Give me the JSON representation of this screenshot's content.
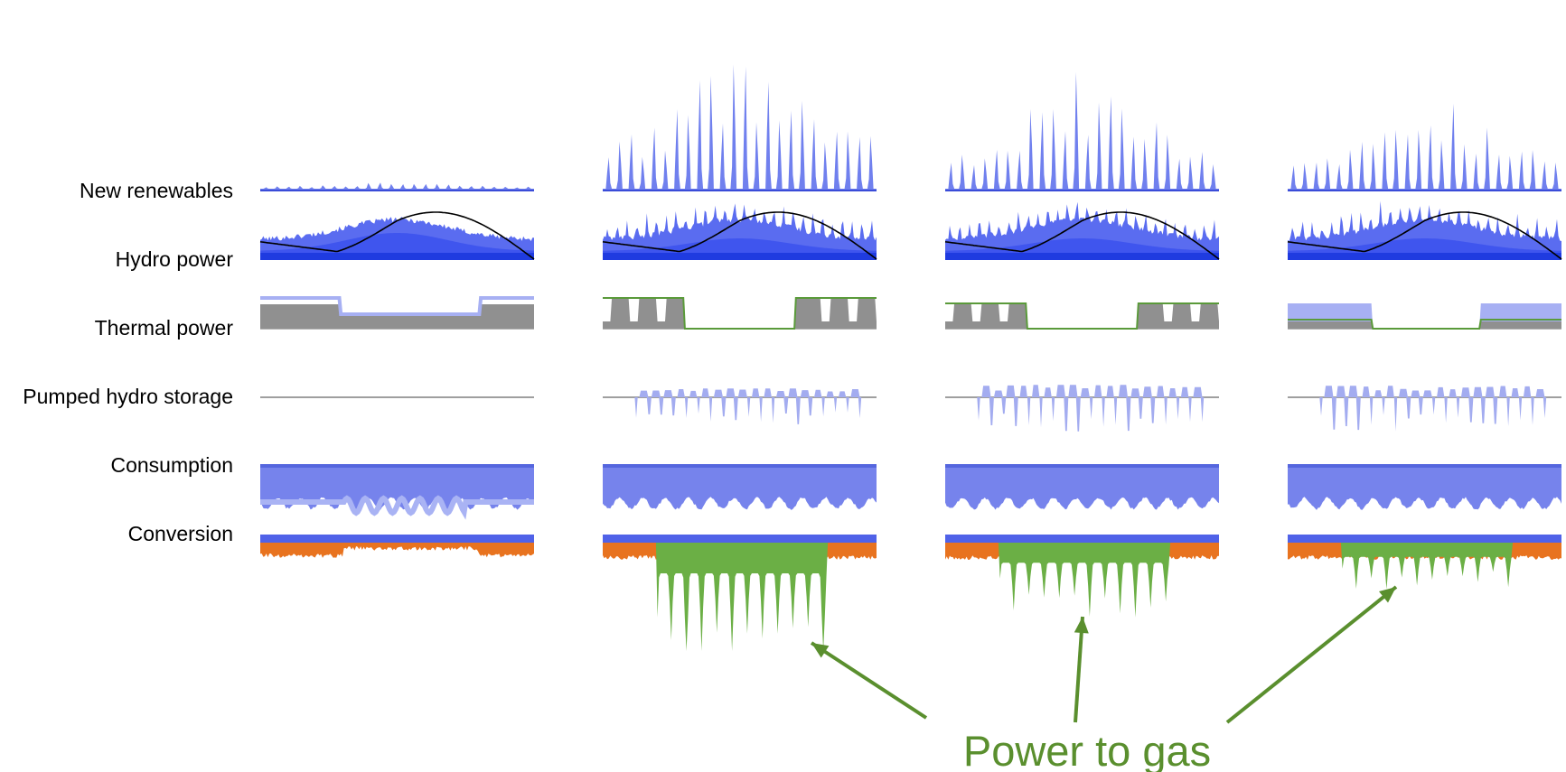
{
  "row_labels": [
    "New renewables",
    "Hydro power",
    "Thermal power",
    "Pumped hydro storage",
    "Consumption",
    "Conversion"
  ],
  "annotation": {
    "text": "Power to gas"
  },
  "colors": {
    "renewables_fill": "#7080EE",
    "renewables_line": "#3A4CD8",
    "hydro_light": "#5A6CF0",
    "hydro_mid": "#3F55EE",
    "hydro_dark": "#1F3BE0",
    "reservoir_line": "#000000",
    "thermal_gray": "#909090",
    "thermal_blue": "#A7B0F3",
    "thermal_green": "#5A9A3A",
    "pumped": "#A3ACF0",
    "consumption_fill": "#7683EC",
    "consumption_light": "#A9B3F4",
    "consumption_top": "#5566DE",
    "conversion_blue": "#5062E8",
    "conversion_orange": "#E8731F",
    "conversion_green": "#6BAF45",
    "annotation_green": "#5A8F2E",
    "baseline": "#666666"
  },
  "scenarios": [
    {
      "renewables_peak": 0.1,
      "thermal_mode": "baseload",
      "pumped_level": 0,
      "p2g_level": 0
    },
    {
      "renewables_peak": 1.0,
      "thermal_mode": "edges",
      "pumped_level": 1,
      "p2g_level": 1.0
    },
    {
      "renewables_peak": 0.82,
      "thermal_mode": "edges",
      "pumped_level": 1.4,
      "p2g_level": 0.55
    },
    {
      "renewables_peak": 0.72,
      "thermal_mode": "blue-edges",
      "pumped_level": 1.3,
      "p2g_level": 0.3
    }
  ]
}
